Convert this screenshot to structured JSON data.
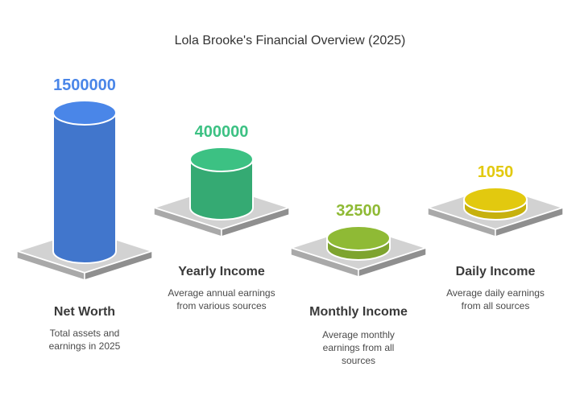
{
  "chart_data": {
    "type": "bar",
    "title": "Lola Brooke's Financial Overview (2025)",
    "categories": [
      "Net Worth",
      "Yearly Income",
      "Monthly Income",
      "Daily Income"
    ],
    "values": [
      1500000,
      400000,
      32500,
      1050
    ],
    "value_labels": [
      "1500000",
      "400000",
      "32500",
      "1050"
    ],
    "descriptions": [
      [
        "Total assets and",
        "earnings in 2025"
      ],
      [
        "Average annual earnings",
        "from various sources"
      ],
      [
        "Average monthly",
        "earnings from all",
        "sources"
      ],
      [
        "Average daily earnings",
        "from all sources"
      ]
    ],
    "colors": [
      "#4a86e8",
      "#3cc183",
      "#8fba35",
      "#e2c90f"
    ]
  }
}
